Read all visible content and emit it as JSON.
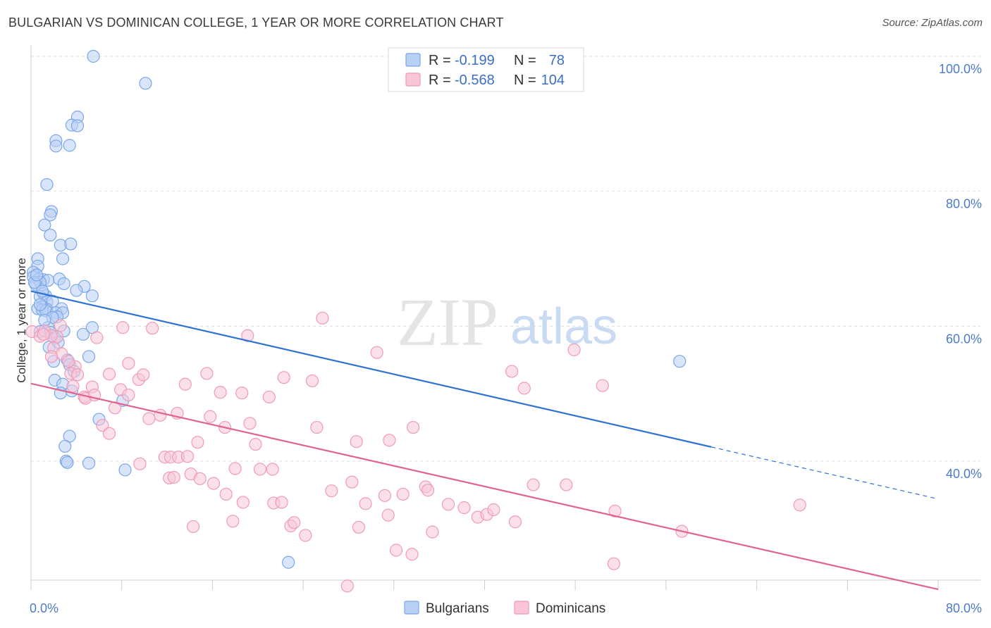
{
  "title": "BULGARIAN VS DOMINICAN COLLEGE, 1 YEAR OR MORE CORRELATION CHART",
  "source": "Source: ZipAtlas.com",
  "chart_data": {
    "type": "scatter",
    "xlabel": "",
    "ylabel": "College, 1 year or more",
    "xlim": [
      0,
      80
    ],
    "ylim": [
      20,
      103
    ],
    "x_tick_labels": [
      "0.0%",
      "80.0%"
    ],
    "y_ticks": [
      40,
      60,
      80,
      100
    ],
    "y_tick_labels": [
      "40.0%",
      "60.0%",
      "80.0%",
      "100.0%"
    ],
    "grid": true,
    "watermark": {
      "zip": "ZIP",
      "atlas": "atlas"
    },
    "legend_position": "top-center",
    "series": [
      {
        "name": "Bulgarians",
        "color": "#7aa7e8",
        "fill": "#b9d0f5",
        "line_color": "#2f72d0",
        "R_label": "R =",
        "R": "-0.199",
        "N_label": "N =",
        "N": "78",
        "trend": {
          "x0": 0,
          "y0": 65.2,
          "x1": 60,
          "y1": 42.1,
          "dash_to_x": 80
        },
        "points": [
          [
            5.5,
            100
          ],
          [
            10.1,
            96
          ],
          [
            4.1,
            91
          ],
          [
            3.6,
            89.8
          ],
          [
            4.1,
            89.7
          ],
          [
            2.2,
            87.5
          ],
          [
            3.4,
            86.8
          ],
          [
            2.2,
            86.7
          ],
          [
            1.4,
            81
          ],
          [
            1.8,
            77
          ],
          [
            1.7,
            76.5
          ],
          [
            1.2,
            75
          ],
          [
            1.7,
            73.5
          ],
          [
            2.6,
            72
          ],
          [
            3.5,
            72.2
          ],
          [
            0.6,
            70
          ],
          [
            2.8,
            70
          ],
          [
            0.6,
            68.9
          ],
          [
            0.2,
            68
          ],
          [
            0.2,
            67.3
          ],
          [
            0.7,
            67
          ],
          [
            1.1,
            66.9
          ],
          [
            1.5,
            66.8
          ],
          [
            2.5,
            67
          ],
          [
            0.8,
            66.5
          ],
          [
            0.4,
            66.2
          ],
          [
            4.7,
            65.9
          ],
          [
            4.0,
            65.3
          ],
          [
            1.1,
            64.8
          ],
          [
            1.3,
            64.5
          ],
          [
            0.8,
            64.4
          ],
          [
            1.4,
            63.6
          ],
          [
            1.9,
            63.7
          ],
          [
            1.0,
            62.9
          ],
          [
            0.6,
            62.6
          ],
          [
            1.4,
            62.5
          ],
          [
            2.7,
            62.6
          ],
          [
            1.0,
            62.4
          ],
          [
            5.4,
            64.5
          ],
          [
            1.3,
            62.3
          ],
          [
            2.2,
            62.0
          ],
          [
            2.8,
            62
          ],
          [
            2.3,
            61.4
          ],
          [
            1.9,
            61.3
          ],
          [
            1.5,
            59.8
          ],
          [
            0.8,
            59.2
          ],
          [
            1.7,
            59.1
          ],
          [
            2.1,
            58.2
          ],
          [
            2.9,
            59.3
          ],
          [
            4.6,
            58.8
          ],
          [
            5.4,
            59.8
          ],
          [
            1.6,
            56.9
          ],
          [
            5.1,
            55.5
          ],
          [
            3.2,
            55
          ],
          [
            2.0,
            54.8
          ],
          [
            3.4,
            54.3
          ],
          [
            2.1,
            52
          ],
          [
            2.8,
            51.4
          ],
          [
            2.6,
            50.1
          ],
          [
            3.6,
            50.4
          ],
          [
            8.1,
            49
          ],
          [
            6.0,
            46.2
          ],
          [
            3.4,
            43.7
          ],
          [
            3.0,
            42.2
          ],
          [
            3.1,
            40
          ],
          [
            3.2,
            39.8
          ],
          [
            5.1,
            39.7
          ],
          [
            8.3,
            38.7
          ],
          [
            57.2,
            54.8
          ],
          [
            22.7,
            25
          ],
          [
            0.3,
            66.5
          ],
          [
            0.5,
            67.6
          ],
          [
            1.0,
            65.2
          ],
          [
            0.8,
            63.2
          ],
          [
            1.2,
            60.9
          ],
          [
            2.4,
            57.6
          ],
          [
            3.8,
            53.3
          ],
          [
            2.9,
            66.3
          ]
        ]
      },
      {
        "name": "Dominicans",
        "color": "#ef9ab8",
        "fill": "#f8c6d7",
        "line_color": "#e0638f",
        "R_label": "R =",
        "R": "-0.568",
        "N_label": "N =",
        "N": "104",
        "trend": {
          "x0": 0,
          "y0": 51.5,
          "x1": 80,
          "y1": 21
        },
        "points": [
          [
            0.1,
            59.2
          ],
          [
            0.8,
            58.5
          ],
          [
            1.2,
            59.3
          ],
          [
            2.3,
            58.4
          ],
          [
            1.8,
            58.6
          ],
          [
            2.0,
            56.8
          ],
          [
            2.7,
            55.9
          ],
          [
            1.8,
            55.5
          ],
          [
            3.9,
            54
          ],
          [
            3.3,
            54.8
          ],
          [
            3.5,
            53
          ],
          [
            4.1,
            52.8
          ],
          [
            3.7,
            51.1
          ],
          [
            5.4,
            51
          ],
          [
            4.7,
            49.5
          ],
          [
            4.8,
            49.3
          ],
          [
            5.6,
            49.8
          ],
          [
            5.8,
            58.3
          ],
          [
            8.1,
            59.8
          ],
          [
            10.7,
            59.7
          ],
          [
            25.7,
            61.2
          ],
          [
            19.1,
            58.6
          ],
          [
            30.5,
            56.1
          ],
          [
            47.9,
            56.5
          ],
          [
            6.9,
            52.9
          ],
          [
            8.6,
            54.5
          ],
          [
            9.5,
            52.1
          ],
          [
            9.9,
            52.8
          ],
          [
            7.4,
            47.9
          ],
          [
            7.9,
            50.6
          ],
          [
            8.6,
            49.8
          ],
          [
            10.4,
            46.3
          ],
          [
            11.4,
            46.8
          ],
          [
            6.3,
            45.3
          ],
          [
            6.9,
            44.1
          ],
          [
            13.6,
            51.4
          ],
          [
            15.5,
            53
          ],
          [
            16.7,
            50.2
          ],
          [
            18.6,
            50.1
          ],
          [
            21.0,
            49.5
          ],
          [
            22.3,
            52.4
          ],
          [
            24.8,
            51.9
          ],
          [
            42.4,
            53.3
          ],
          [
            43.5,
            50.8
          ],
          [
            50.4,
            51.2
          ],
          [
            12.9,
            47.1
          ],
          [
            15.8,
            46.6
          ],
          [
            17.1,
            45
          ],
          [
            19.3,
            45.6
          ],
          [
            25.2,
            45
          ],
          [
            28.7,
            42.9
          ],
          [
            31.6,
            43.1
          ],
          [
            33.7,
            45
          ],
          [
            14.7,
            42.8
          ],
          [
            19.8,
            42.5
          ],
          [
            9.6,
            39.6
          ],
          [
            11.8,
            40.6
          ],
          [
            12.3,
            40.6
          ],
          [
            13.0,
            40.6
          ],
          [
            13.8,
            40.7
          ],
          [
            12.2,
            37.5
          ],
          [
            12.6,
            37.6
          ],
          [
            14.1,
            38.1
          ],
          [
            14.9,
            37.4
          ],
          [
            16.1,
            36.7
          ],
          [
            17.2,
            35.1
          ],
          [
            18.0,
            38.9
          ],
          [
            20.2,
            38.8
          ],
          [
            21.3,
            38.8
          ],
          [
            26.5,
            35.6
          ],
          [
            28.3,
            36.9
          ],
          [
            29.5,
            33.7
          ],
          [
            31.2,
            34.9
          ],
          [
            32.8,
            35.1
          ],
          [
            34.8,
            36.2
          ],
          [
            35.0,
            35.7
          ],
          [
            36.8,
            33.6
          ],
          [
            38.2,
            33.1
          ],
          [
            39.4,
            31.7
          ],
          [
            40.2,
            32.1
          ],
          [
            40.8,
            32.8
          ],
          [
            44.3,
            36.5
          ],
          [
            47.2,
            36.5
          ],
          [
            51.5,
            32.6
          ],
          [
            67.8,
            33.5
          ],
          [
            18.7,
            33.9
          ],
          [
            21.4,
            33.8
          ],
          [
            22.1,
            33.9
          ],
          [
            14.3,
            30.3
          ],
          [
            17.8,
            31.1
          ],
          [
            22.9,
            30.4
          ],
          [
            23.2,
            30.9
          ],
          [
            24.2,
            29
          ],
          [
            28.9,
            30.2
          ],
          [
            31.5,
            32
          ],
          [
            35.4,
            29.5
          ],
          [
            42.7,
            31
          ],
          [
            51.4,
            24.8
          ],
          [
            57.4,
            29.6
          ],
          [
            32.2,
            26.8
          ],
          [
            33.6,
            26.2
          ],
          [
            27.9,
            21.5
          ],
          [
            2.6,
            60.1
          ],
          [
            1.1,
            58.8
          ]
        ]
      }
    ]
  }
}
